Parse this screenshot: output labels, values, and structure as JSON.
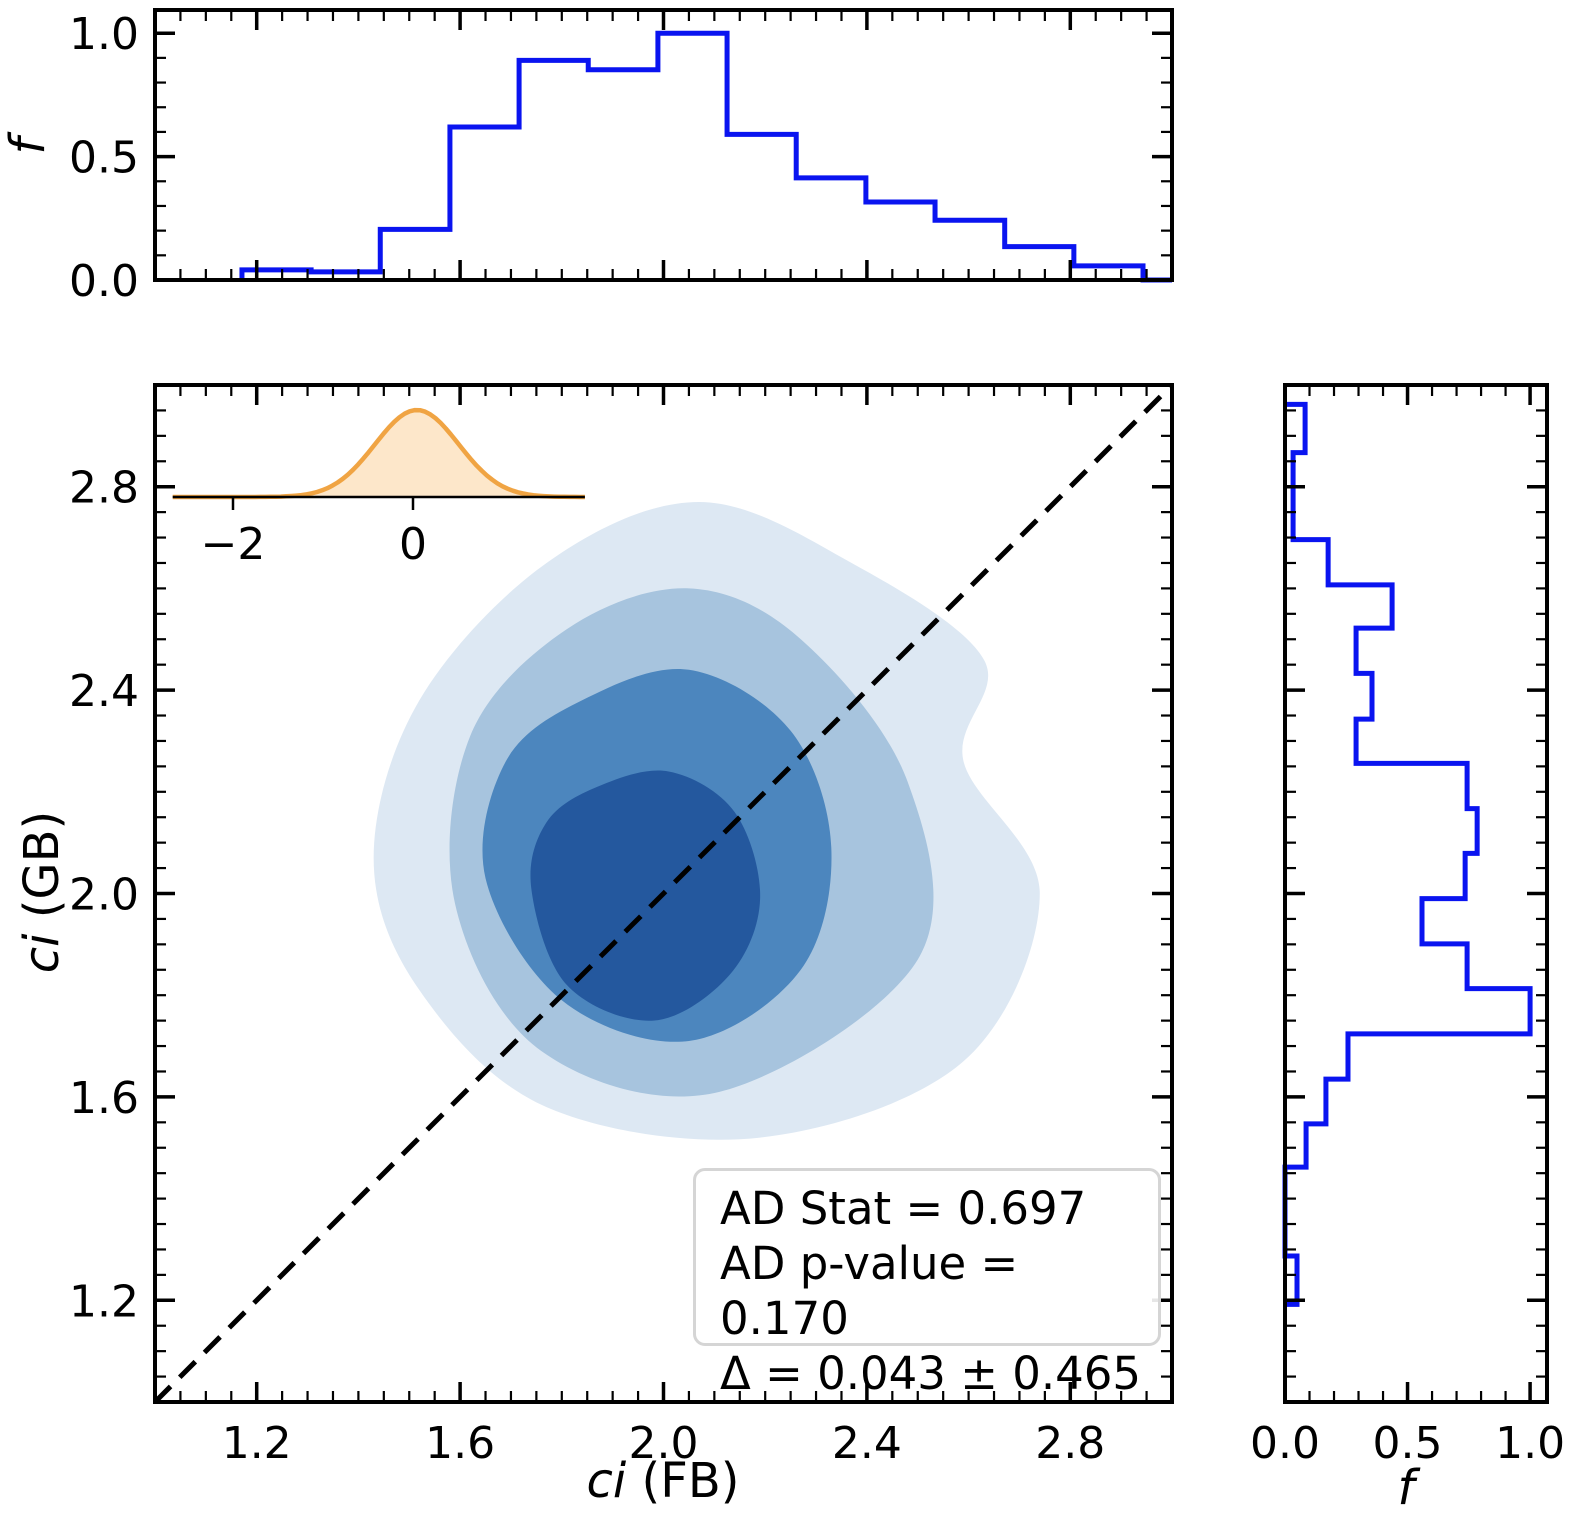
{
  "colors": {
    "background": "#ffffff",
    "axis": "#000000",
    "hist_line": "#0a14f0",
    "identity_line": "#000000",
    "inset_line": "#f0a443",
    "inset_fill": "#fde7ca",
    "stats_box_border": "#d5d5d5",
    "contour_palette": [
      "#dde8f3",
      "#a7c4de",
      "#4c86be",
      "#24589e"
    ]
  },
  "labels": {
    "top_ylabel": "f",
    "main_xlabel_var": "ci",
    "main_xlabel_unit": " (FB)",
    "main_ylabel_var": "ci",
    "main_ylabel_unit": " (GB)",
    "right_xlabel": "f"
  },
  "stats_box": {
    "line1": "AD Stat = 0.697",
    "line2": "AD p-value = 0.170",
    "line3": "Δ = 0.043 ± 0.465"
  },
  "chart_data": [
    {
      "id": "top_histogram",
      "type": "bar",
      "subtype": "step-histogram",
      "orientation": "vertical",
      "ylabel": "f",
      "xlim": [
        1.0,
        3.0
      ],
      "ylim": [
        0,
        1.094
      ],
      "yticks": [
        0.0,
        0.5,
        1.0
      ],
      "xticks": [
        1.2,
        1.6,
        2.0,
        2.4,
        2.8
      ],
      "minor_x_step": 0.05,
      "minor_y_step": 0.1,
      "bin_edges": [
        1.171,
        1.307,
        1.443,
        1.58,
        1.716,
        1.852,
        1.989,
        2.125,
        2.261,
        2.398,
        2.534,
        2.671,
        2.807,
        2.943
      ],
      "values": [
        0.041,
        0.033,
        0.205,
        0.62,
        0.89,
        0.852,
        1.0,
        0.59,
        0.414,
        0.316,
        0.242,
        0.135,
        0.057
      ],
      "baseline_end": 3.0,
      "line_color": "#0a14f0"
    },
    {
      "id": "main_kde_contour",
      "type": "area",
      "subtype": "filled-kde-contours",
      "xlabel": "ci (FB)",
      "ylabel": "ci (GB)",
      "xlim": [
        1.0,
        3.0
      ],
      "ylim": [
        1.0,
        3.0
      ],
      "xticks": [
        1.2,
        1.6,
        2.0,
        2.4,
        2.8
      ],
      "yticks": [
        1.2,
        1.6,
        2.0,
        2.4,
        2.8
      ],
      "minor_step": 0.05,
      "center": [
        1.97,
        2.03
      ],
      "identity_line": {
        "from": [
          1.0,
          1.0
        ],
        "to": [
          3.0,
          3.0
        ],
        "style": "dashed",
        "color": "#000000"
      },
      "contour_levels": [
        {
          "level": 1,
          "color": "#dde8f3",
          "polygon": [
            [
              2.07,
              2.77
            ],
            [
              2.37,
              2.65
            ],
            [
              2.63,
              2.46
            ],
            [
              2.59,
              2.26
            ],
            [
              2.74,
              2.0
            ],
            [
              2.59,
              1.67
            ],
            [
              2.19,
              1.52
            ],
            [
              1.77,
              1.58
            ],
            [
              1.52,
              1.81
            ],
            [
              1.43,
              2.07
            ],
            [
              1.52,
              2.38
            ],
            [
              1.77,
              2.65
            ]
          ]
        },
        {
          "level": 2,
          "color": "#a7c4de",
          "polygon": [
            [
              2.05,
              2.6
            ],
            [
              2.27,
              2.5
            ],
            [
              2.48,
              2.22
            ],
            [
              2.5,
              1.87
            ],
            [
              2.11,
              1.61
            ],
            [
              1.76,
              1.69
            ],
            [
              1.59,
              1.98
            ],
            [
              1.62,
              2.31
            ],
            [
              1.81,
              2.52
            ]
          ]
        },
        {
          "level": 3,
          "color": "#4c86be",
          "polygon": [
            [
              2.05,
              2.44
            ],
            [
              2.25,
              2.32
            ],
            [
              2.33,
              2.09
            ],
            [
              2.27,
              1.85
            ],
            [
              2.05,
              1.71
            ],
            [
              1.8,
              1.79
            ],
            [
              1.65,
              2.03
            ],
            [
              1.69,
              2.26
            ],
            [
              1.84,
              2.38
            ]
          ]
        },
        {
          "level": 4,
          "color": "#24589e",
          "polygon": [
            [
              2.01,
              2.24
            ],
            [
              2.14,
              2.16
            ],
            [
              2.19,
              1.99
            ],
            [
              2.13,
              1.84
            ],
            [
              1.98,
              1.75
            ],
            [
              1.81,
              1.82
            ],
            [
              1.74,
              2.01
            ],
            [
              1.77,
              2.14
            ],
            [
              1.87,
              2.21
            ]
          ]
        }
      ],
      "inset": {
        "type": "kde-1d",
        "mean": 0.043,
        "sigma": 0.465,
        "xlim": [
          -2.67,
          1.91
        ],
        "xticks": [
          -2,
          0
        ],
        "line_color": "#f0a443",
        "fill_color": "#fde7ca"
      },
      "annotations": [
        "AD Stat = 0.697",
        "AD p-value = 0.170",
        "Δ = 0.043 ± 0.465"
      ]
    },
    {
      "id": "right_histogram",
      "type": "bar",
      "subtype": "step-histogram",
      "orientation": "horizontal",
      "xlabel": "f",
      "xlim": [
        0,
        1.069
      ],
      "ylim": [
        1.0,
        3.0
      ],
      "xticks": [
        0.0,
        0.5,
        1.0
      ],
      "yticks": [
        1.2,
        1.6,
        2.0,
        2.4,
        2.8
      ],
      "minor_x_step": 0.1,
      "minor_y_step": 0.05,
      "bin_edges": [
        1.192,
        1.287,
        1.374,
        1.462,
        1.547,
        1.635,
        1.724,
        1.813,
        1.901,
        1.99,
        2.079,
        2.167,
        2.256,
        2.343,
        2.433,
        2.522,
        2.607,
        2.696,
        2.78,
        2.867,
        2.962
      ],
      "values": [
        0.049,
        0,
        0,
        0.086,
        0.167,
        0.257,
        1.0,
        0.743,
        0.559,
        0.735,
        0.784,
        0.743,
        0.29,
        0.355,
        0.29,
        0.437,
        0.176,
        0.033,
        0.033,
        0.082
      ],
      "line_color": "#0a14f0"
    }
  ]
}
